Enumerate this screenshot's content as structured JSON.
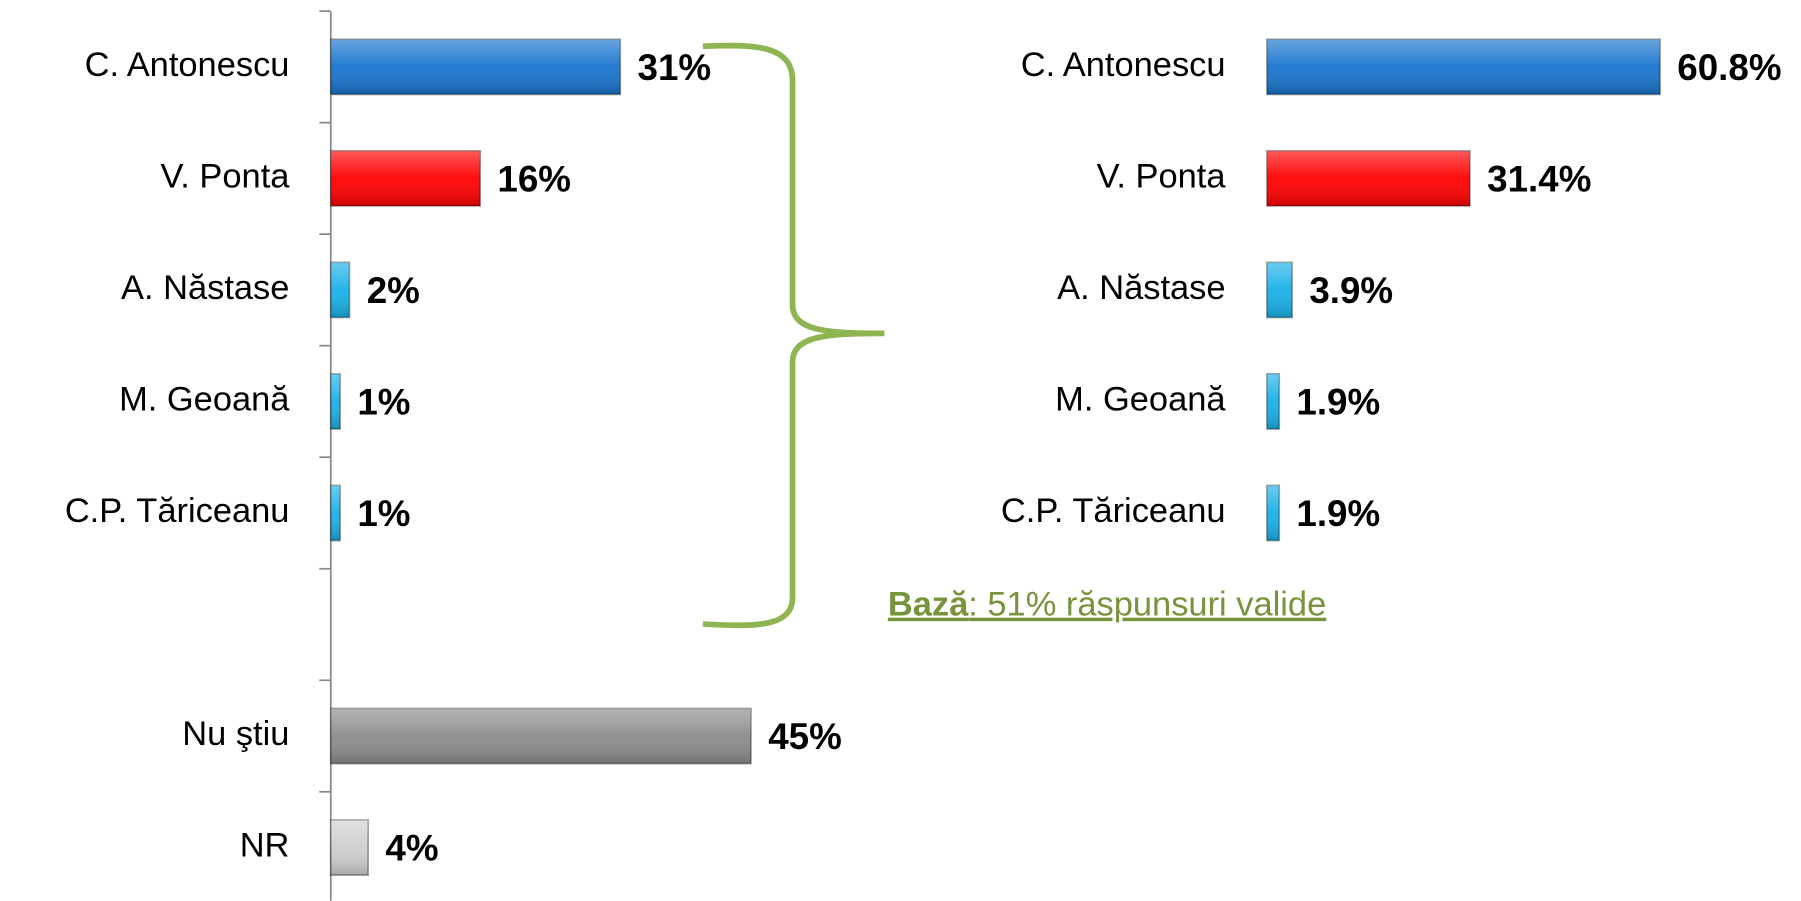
{
  "chart_data": [
    {
      "type": "bar",
      "categories": [
        "C. Antonescu",
        "V. Ponta",
        "A. Năstase",
        "M. Geoană",
        "C.P. Tăriceanu",
        null,
        "Nu ştiu",
        "NR"
      ],
      "values": [
        31,
        16,
        2,
        1,
        1,
        null,
        45,
        4
      ],
      "value_labels": [
        "31%",
        "16%",
        "2%",
        "1%",
        "1%",
        null,
        "45%",
        "4%"
      ],
      "colors": [
        "#1874cd",
        "#ff0000",
        "#1ab0e8",
        "#1ab0e8",
        "#1ab0e8",
        null,
        "#8c8c8c",
        "#cfcfcf"
      ]
    },
    {
      "type": "bar",
      "categories": [
        "C. Antonescu",
        "V. Ponta",
        "A. Năstase",
        "M. Geoană",
        "C.P. Tăriceanu"
      ],
      "values": [
        60.8,
        31.4,
        3.9,
        1.9,
        1.9
      ],
      "value_labels": [
        "60.8%",
        "31.4%",
        "3.9%",
        "1.9%",
        "1.9%"
      ],
      "colors": [
        "#1874cd",
        "#ff0000",
        "#1ab0e8",
        "#1ab0e8",
        "#1ab0e8"
      ],
      "annotation": [
        "Bază",
        ": 51% răspunsuri valide"
      ]
    }
  ]
}
